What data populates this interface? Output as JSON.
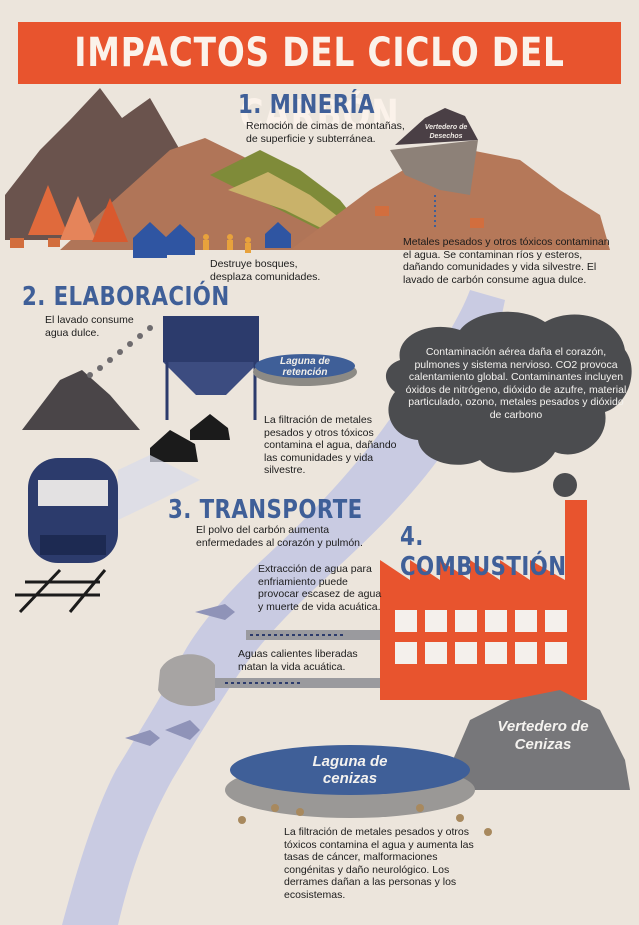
{
  "title": "IMPACTOS DEL CICLO DEL CARBÓN",
  "sections": {
    "mineria": {
      "heading": "1. MINERÍA",
      "note_top": "Remoción de cimas de montañas, de superficie y subterránea.",
      "note_forest": "Destruye bosques, desplaza comunidades.",
      "note_water": "Metales pesados y otros tóxicos contaminan el agua. Se contaminan ríos y esteros, dañando comunidades y vida silvestre. El lavado de carbón consume agua dulce.",
      "label_waste": "Vertedero de Desechos"
    },
    "elaboracion": {
      "heading": "2. ELABORACIÓN",
      "note_wash": "El lavado consume agua dulce.",
      "label_pond": "Laguna de retención",
      "note_leach": "La filtración de metales pesados y otros tóxicos contamina el agua, dañando las comunidades y vida silvestre."
    },
    "transporte": {
      "heading": "3. TRANSPORTE",
      "note": "El polvo del carbón aumenta enfermedades al corazón y pulmón."
    },
    "combustion": {
      "heading": "4. COMBUSTIÓN",
      "note_cloud": "Contaminación aérea daña el corazón, pulmones y sistema nervioso. CO2 provoca calentamiento global. Contaminantes incluyen óxidos de nitrógeno, dióxido de azufre, material particulado, ozono, metales pesados y dióxido de carbono",
      "note_intake": "Extracción de agua para enfriamiento puede provocar escasez de agua y muerte de vida acuática.",
      "note_hot": "Aguas calientes liberadas matan la vida acuática.",
      "label_ash_dump": "Vertedero de Cenizas",
      "label_ash_pond": "Laguna de cenizas",
      "note_ash": "La filtración de metales pesados y otros tóxicos contamina el agua y aumenta las tasas de cáncer, malformaciones congénitas y daño neurológico. Los derrames dañan a las personas y los ecosistemas."
    }
  },
  "colors": {
    "background": "#ece5dc",
    "accent_orange": "#e8542e",
    "heading_blue": "#3f5f98",
    "river": "#c9cbe2",
    "cloud": "#4b4c4f",
    "train": "#2c3b6c"
  }
}
